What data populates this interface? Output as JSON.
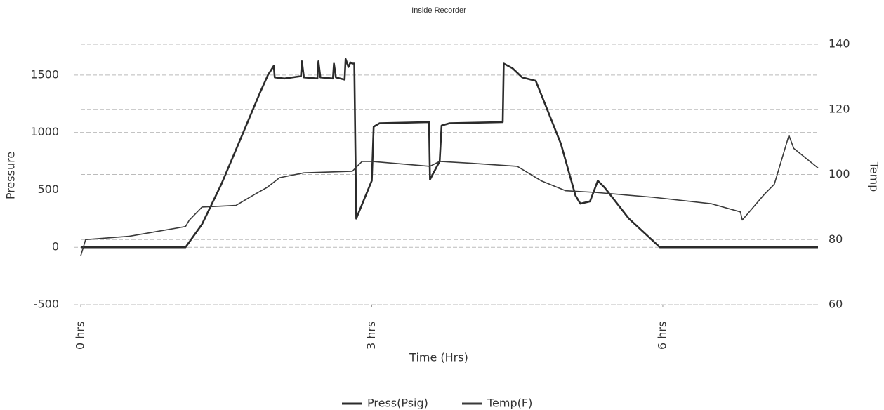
{
  "chart_data": {
    "type": "line",
    "title": "Inside Recorder",
    "x_label": "Time (Hrs)",
    "y_label": "Pressure",
    "y2_label": "Temp",
    "xlim": [
      0,
      7.6
    ],
    "xticks": [
      {
        "value": 0,
        "label": "0 hrs"
      },
      {
        "value": 3,
        "label": "3 hrs"
      },
      {
        "value": 6,
        "label": "6 hrs"
      }
    ],
    "ylim": [
      -500,
      1750
    ],
    "yticks": [
      -500,
      0,
      500,
      1000,
      1500
    ],
    "y2lim": [
      60,
      140
    ],
    "y2ticks": [
      60,
      80,
      100,
      120,
      140
    ],
    "grid": true,
    "legend": "bottom",
    "series": [
      {
        "name": "Press(Psig)",
        "color": "#2b2b2b",
        "x": [
          0,
          1.08,
          1.25,
          1.45,
          1.6,
          1.75,
          1.85,
          1.93,
          1.99,
          2.0,
          2.1,
          2.27,
          2.28,
          2.3,
          2.44,
          2.45,
          2.47,
          2.6,
          2.61,
          2.63,
          2.72,
          2.73,
          2.76,
          2.78,
          2.8,
          2.82,
          2.84,
          3.0,
          3.02,
          3.08,
          3.59,
          3.6,
          3.7,
          3.72,
          3.8,
          4.35,
          4.36,
          4.45,
          4.55,
          4.69,
          4.95,
          5.1,
          5.15,
          5.25,
          5.33,
          5.4,
          5.65,
          5.97,
          7.6
        ],
        "values": [
          0,
          0,
          200,
          550,
          850,
          1150,
          1350,
          1500,
          1580,
          1480,
          1470,
          1490,
          1620,
          1480,
          1470,
          1620,
          1480,
          1470,
          1600,
          1480,
          1460,
          1640,
          1570,
          1610,
          1600,
          1600,
          250,
          580,
          1050,
          1080,
          1090,
          590,
          750,
          1060,
          1080,
          1090,
          1600,
          1560,
          1480,
          1450,
          900,
          450,
          380,
          400,
          580,
          520,
          250,
          0,
          0
        ]
      },
      {
        "name": "Temp(F)",
        "color": "#3a3a3a",
        "axis": "y2",
        "x": [
          0,
          0.05,
          0.5,
          1.08,
          1.12,
          1.25,
          1.6,
          1.8,
          1.92,
          2.05,
          2.3,
          2.8,
          2.9,
          3.0,
          3.6,
          3.7,
          4.0,
          4.5,
          4.75,
          5.0,
          5.3,
          5.9,
          6.5,
          6.8,
          6.82,
          7.05,
          7.15,
          7.3,
          7.35,
          7.6
        ],
        "values": [
          75,
          80,
          81,
          84,
          86,
          90,
          90.5,
          94,
          96,
          99,
          100.5,
          101,
          104,
          104,
          102.5,
          104,
          103.5,
          102.5,
          98,
          95,
          94.5,
          93,
          91,
          88.5,
          86,
          94,
          97,
          112,
          108,
          102
        ]
      }
    ]
  }
}
